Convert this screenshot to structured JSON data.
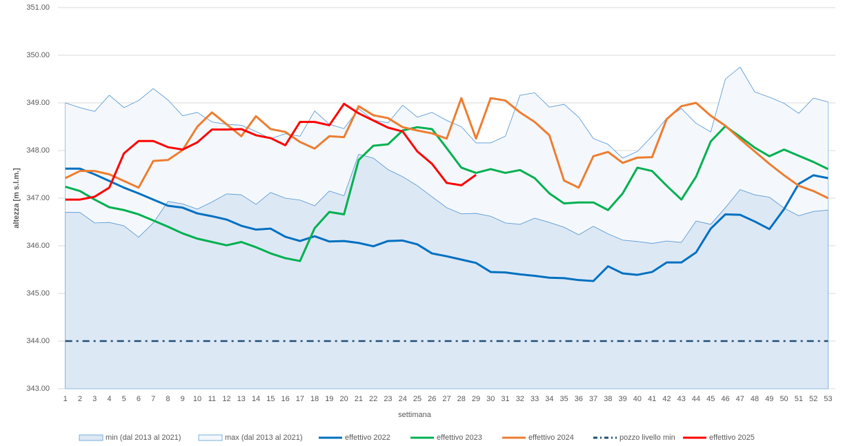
{
  "chart_data": {
    "type": "line",
    "xlabel": "settimana",
    "ylabel": "altezza [m s.l.m.]",
    "categories": [
      "1",
      "2",
      "3",
      "4",
      "5",
      "6",
      "7",
      "8",
      "9",
      "10",
      "11",
      "12",
      "13",
      "14",
      "15",
      "16",
      "17",
      "18",
      "19",
      "20",
      "21",
      "22",
      "23",
      "24",
      "25",
      "26",
      "27",
      "28",
      "29",
      "30",
      "31",
      "32",
      "33",
      "34",
      "35",
      "36",
      "37",
      "38",
      "39",
      "40",
      "41",
      "42",
      "43",
      "44",
      "45",
      "46",
      "47",
      "48",
      "49",
      "50",
      "51",
      "52",
      "53"
    ],
    "ylim": [
      343,
      351
    ],
    "yticks": [
      {
        "value": 343,
        "label": "343.00"
      },
      {
        "value": 344,
        "label": "344.00"
      },
      {
        "value": 345,
        "label": "345.00"
      },
      {
        "value": 346,
        "label": "346.00"
      },
      {
        "value": 347,
        "label": "347.00"
      },
      {
        "value": 348,
        "label": "348.00"
      },
      {
        "value": 349,
        "label": "349.00"
      },
      {
        "value": 350,
        "label": "350.00"
      },
      {
        "value": 351,
        "label": "351.00"
      }
    ],
    "grid": true,
    "legend": "bottom",
    "series": [
      {
        "name": "max (dal 2013 al 2021)",
        "color": "#5b9bd5",
        "fill": "#f4f8fc",
        "values": [
          349.0,
          348.9,
          348.82,
          349.16,
          348.9,
          349.05,
          349.3,
          349.06,
          348.73,
          348.8,
          348.6,
          348.55,
          348.53,
          348.4,
          348.25,
          348.35,
          348.3,
          348.83,
          348.55,
          348.46,
          348.88,
          348.64,
          348.58,
          348.95,
          348.7,
          348.8,
          348.63,
          348.5,
          348.16,
          348.16,
          348.3,
          349.16,
          349.21,
          348.91,
          348.97,
          348.7,
          348.25,
          348.13,
          347.84,
          347.98,
          348.3,
          348.68,
          348.88,
          348.57,
          348.39,
          349.5,
          349.75,
          349.23,
          349.12,
          348.99,
          348.78,
          349.1,
          349.02
        ]
      },
      {
        "name": "min (dal 2013 al 2021)",
        "color": "#5b9bd5",
        "fill": "#dde8f5",
        "values": [
          346.7,
          346.7,
          346.48,
          346.49,
          346.42,
          346.18,
          346.48,
          346.93,
          346.88,
          346.77,
          346.92,
          347.09,
          347.07,
          346.87,
          347.12,
          347.0,
          346.96,
          346.84,
          347.15,
          347.05,
          347.92,
          347.84,
          347.6,
          347.45,
          347.26,
          347.03,
          346.8,
          346.67,
          346.68,
          346.62,
          346.48,
          346.45,
          346.58,
          346.49,
          346.39,
          346.23,
          346.41,
          346.25,
          346.12,
          346.09,
          346.05,
          346.1,
          346.07,
          346.52,
          346.45,
          346.8,
          347.18,
          347.07,
          347.02,
          346.79,
          346.63,
          346.72,
          346.75
        ]
      },
      {
        "name": "effettivo 2022",
        "color": "#0070c0",
        "values": [
          347.62,
          347.62,
          347.5,
          347.36,
          347.22,
          347.1,
          346.97,
          346.84,
          346.8,
          346.68,
          346.62,
          346.55,
          346.42,
          346.34,
          346.36,
          346.19,
          346.1,
          346.2,
          346.09,
          346.1,
          346.06,
          345.99,
          346.1,
          346.11,
          346.03,
          345.84,
          345.78,
          345.71,
          345.64,
          345.45,
          345.44,
          345.4,
          345.37,
          345.33,
          345.32,
          345.28,
          345.26,
          345.57,
          345.42,
          345.39,
          345.45,
          345.65,
          345.65,
          345.86,
          346.36,
          346.66,
          346.65,
          346.51,
          346.35,
          346.77,
          347.3,
          347.48,
          347.42
        ]
      },
      {
        "name": "effettivo 2023",
        "color": "#00b050",
        "values": [
          347.24,
          347.15,
          346.97,
          346.81,
          346.75,
          346.66,
          346.53,
          346.4,
          346.26,
          346.15,
          346.08,
          346.01,
          346.08,
          345.97,
          345.84,
          345.74,
          345.68,
          346.37,
          346.71,
          346.66,
          347.8,
          348.1,
          348.13,
          348.42,
          348.49,
          348.45,
          348.05,
          347.64,
          347.53,
          347.61,
          347.53,
          347.59,
          347.42,
          347.1,
          346.89,
          346.91,
          346.91,
          346.75,
          347.1,
          347.64,
          347.57,
          347.26,
          346.97,
          347.45,
          348.19,
          348.51,
          348.29,
          348.06,
          347.88,
          348.02,
          347.89,
          347.76,
          347.61
        ]
      },
      {
        "name": "effettivo 2024",
        "color": "#ed7d31",
        "values": [
          347.42,
          347.57,
          347.57,
          347.5,
          347.36,
          347.22,
          347.78,
          347.8,
          348.01,
          348.5,
          348.8,
          348.55,
          348.3,
          348.72,
          348.45,
          348.39,
          348.18,
          348.04,
          348.3,
          348.28,
          348.93,
          348.74,
          348.68,
          348.49,
          348.42,
          348.36,
          348.25,
          349.1,
          348.25,
          349.1,
          349.05,
          348.8,
          348.6,
          348.32,
          347.37,
          347.22,
          347.88,
          347.97,
          347.74,
          347.85,
          347.86,
          348.66,
          348.93,
          349.0,
          348.73,
          348.52,
          348.24,
          347.98,
          347.72,
          347.48,
          347.26,
          347.15,
          347.0
        ]
      },
      {
        "name": "pozzo livello min",
        "color": "#1f4e79",
        "dash": "dashdot",
        "values": [
          344,
          344,
          344,
          344,
          344,
          344,
          344,
          344,
          344,
          344,
          344,
          344,
          344,
          344,
          344,
          344,
          344,
          344,
          344,
          344,
          344,
          344,
          344,
          344,
          344,
          344,
          344,
          344,
          344,
          344,
          344,
          344,
          344,
          344,
          344,
          344,
          344,
          344,
          344,
          344,
          344,
          344,
          344,
          344,
          344,
          344,
          344,
          344,
          344,
          344,
          344,
          344,
          344
        ]
      },
      {
        "name": "effettivo  2025",
        "color": "#ff0000",
        "values": [
          346.97,
          346.97,
          347.03,
          347.22,
          347.94,
          348.2,
          348.2,
          348.07,
          348.02,
          348.17,
          348.44,
          348.44,
          348.45,
          348.32,
          348.26,
          348.11,
          348.6,
          348.6,
          348.53,
          348.98,
          348.78,
          348.63,
          348.48,
          348.4,
          347.98,
          347.72,
          347.32,
          347.27,
          347.49,
          null,
          null,
          null,
          null,
          null,
          null,
          null,
          null,
          null,
          null,
          null,
          null,
          null,
          null,
          null,
          null,
          null,
          null,
          null,
          null,
          null,
          null,
          null,
          null
        ]
      }
    ]
  }
}
